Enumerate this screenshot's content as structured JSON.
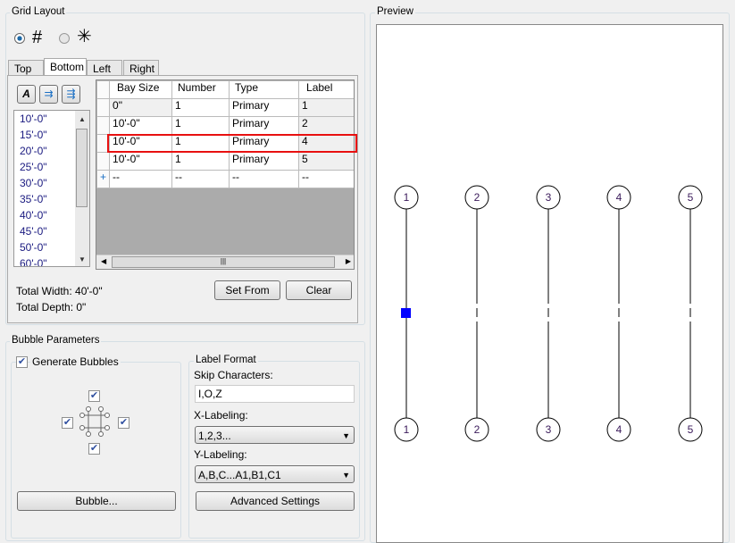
{
  "grid_layout": {
    "title": "Grid Layout",
    "mode_options": [
      {
        "icon": "rectangular-grid-icon",
        "selected": true
      },
      {
        "icon": "radial-grid-icon",
        "selected": false
      }
    ],
    "tabs": [
      {
        "label": "Top",
        "active": false
      },
      {
        "label": "Bottom",
        "active": true
      },
      {
        "label": "Left",
        "active": false
      },
      {
        "label": "Right",
        "active": false
      }
    ],
    "toolbar_icons": [
      "edit-text-icon",
      "import-table-icon",
      "export-table-icon"
    ],
    "bay_sizes": [
      "10'-0\"",
      "15'-0\"",
      "20'-0\"",
      "25'-0\"",
      "30'-0\"",
      "35'-0\"",
      "40'-0\"",
      "45'-0\"",
      "50'-0\"",
      "60'-0\""
    ],
    "table": {
      "headers": [
        "Bay Size",
        "Number",
        "Type",
        "Label"
      ],
      "rows": [
        [
          "0\"",
          "1",
          "Primary",
          "1"
        ],
        [
          "10'-0\"",
          "1",
          "Primary",
          "2"
        ],
        [
          "10'-0\"",
          "1",
          "Primary",
          "4"
        ],
        [
          "10'-0\"",
          "1",
          "Primary",
          "5"
        ]
      ],
      "new_row": [
        "--",
        "--",
        "--",
        "--"
      ],
      "new_row_marker": "+",
      "highlighted_row": 2,
      "highlight_color": "#e81010"
    },
    "total_width": "Total Width: 40'-0\"",
    "total_depth": "Total Depth: 0\"",
    "set_from_label": "Set From",
    "clear_label": "Clear"
  },
  "bubble_parameters": {
    "title": "Bubble Parameters",
    "generate_bubbles": {
      "label": "Generate Bubbles",
      "checked": true
    },
    "positions": {
      "top": true,
      "left": true,
      "right": true,
      "bottom": true
    },
    "bubble_button": "Bubble...",
    "label_format": {
      "title": "Label Format",
      "skip_label": "Skip Characters:",
      "skip_value": "I,O,Z",
      "x_label": "X-Labeling:",
      "x_value": "1,2,3...",
      "y_label": "Y-Labeling:",
      "y_value": "A,B,C...A1,B1,C1",
      "advanced_button": "Advanced Settings"
    }
  },
  "preview": {
    "title": "Preview",
    "top_bubbles": [
      "1",
      "2",
      "3",
      "4",
      "5"
    ],
    "bottom_bubbles": [
      "1",
      "2",
      "3",
      "4",
      "5"
    ],
    "selected_color": "#0000ff"
  }
}
